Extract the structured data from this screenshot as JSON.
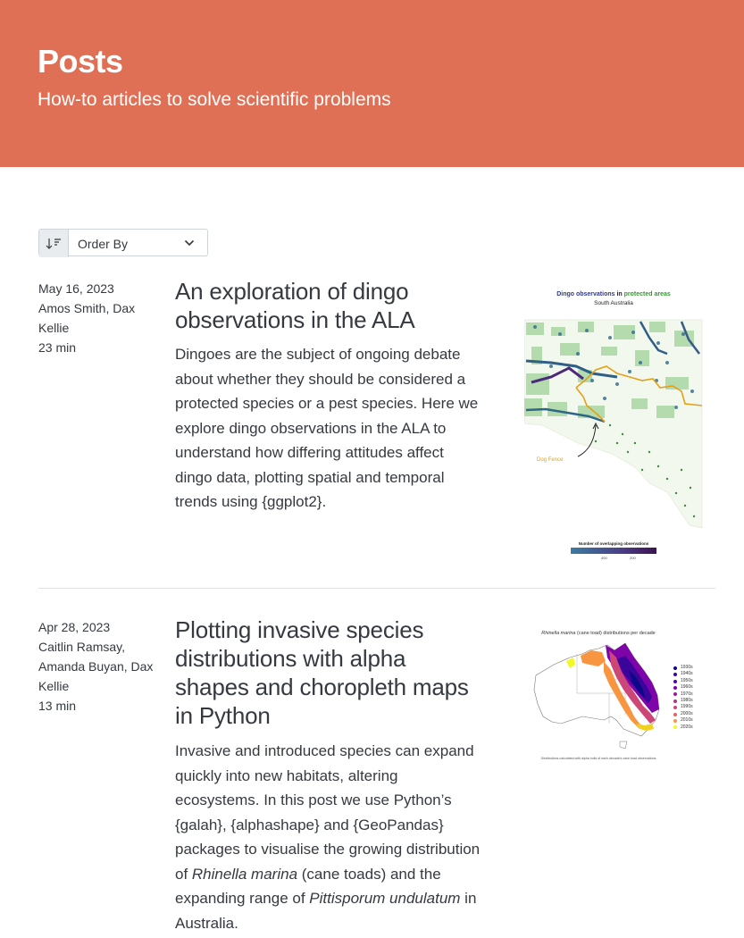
{
  "header": {
    "title": "Posts",
    "subtitle": "How-to articles to solve scientific problems",
    "background": "#e07055"
  },
  "sort": {
    "label": "Order By",
    "sort_icon": "sort-descending-icon",
    "dropdown_icon": "chevron-down-icon"
  },
  "posts": [
    {
      "date": "May 16, 2023",
      "authors": "Amos Smith, Dax Kellie",
      "reading_time": "23 min",
      "title": "An exploration of dingo observations in the ALA",
      "description": "Dingoes are the subject of ongoing debate about whether they should be considered a protected species or a pest species. Here we explore dingo observations in the ALA to understand how differing attitudes affect dingo data, plotting spatial and temporal trends using {ggplot2}.",
      "thumbnail": {
        "title_part1": "Dingo observations",
        "title_part2": " in ",
        "title_part3": "protected areas",
        "subtitle": "South Australia",
        "annotation": "Dog Fence",
        "legend_title": "Number of overlapping observations",
        "legend_ticks": [
          "400",
          "200"
        ]
      }
    },
    {
      "date": "Apr 28, 2023",
      "authors": "Caitlin Ramsay, Amanda Buyan, Dax Kellie",
      "reading_time": "13 min",
      "title": "Plotting invasive species distributions with alpha shapes and choropleth maps in Python",
      "description_parts": {
        "p1": "Invasive and introduced species can expand quickly into new habitats, altering ecosystems. In this post we use Python’s {galah}, {alphashape} and {GeoPandas} packages to visualise the growing distribution of ",
        "species1": "Rhinella marina",
        "p2": " (cane toads) and the expanding range of ",
        "species2": "Pittisporum undulatum",
        "p3": " in Australia."
      },
      "thumbnail": {
        "title_species": "Rhinella marina",
        "title_rest": " (cane toad) distributions per decade",
        "caption": "Distributions calculated with alpha hulls of each decade's cane toad observations",
        "legend": [
          {
            "label": "1930s",
            "color": "#0d0887"
          },
          {
            "label": "1940s",
            "color": "#3b049a"
          },
          {
            "label": "1950s",
            "color": "#5c01a6"
          },
          {
            "label": "1960s",
            "color": "#7e03a8"
          },
          {
            "label": "1970s",
            "color": "#9c179e"
          },
          {
            "label": "1980s",
            "color": "#b52f8c"
          },
          {
            "label": "1990s",
            "color": "#cc4778"
          },
          {
            "label": "2000s",
            "color": "#e16462"
          },
          {
            "label": "2010s",
            "color": "#f89540"
          },
          {
            "label": "2020s",
            "color": "#f0f921"
          }
        ]
      }
    }
  ]
}
